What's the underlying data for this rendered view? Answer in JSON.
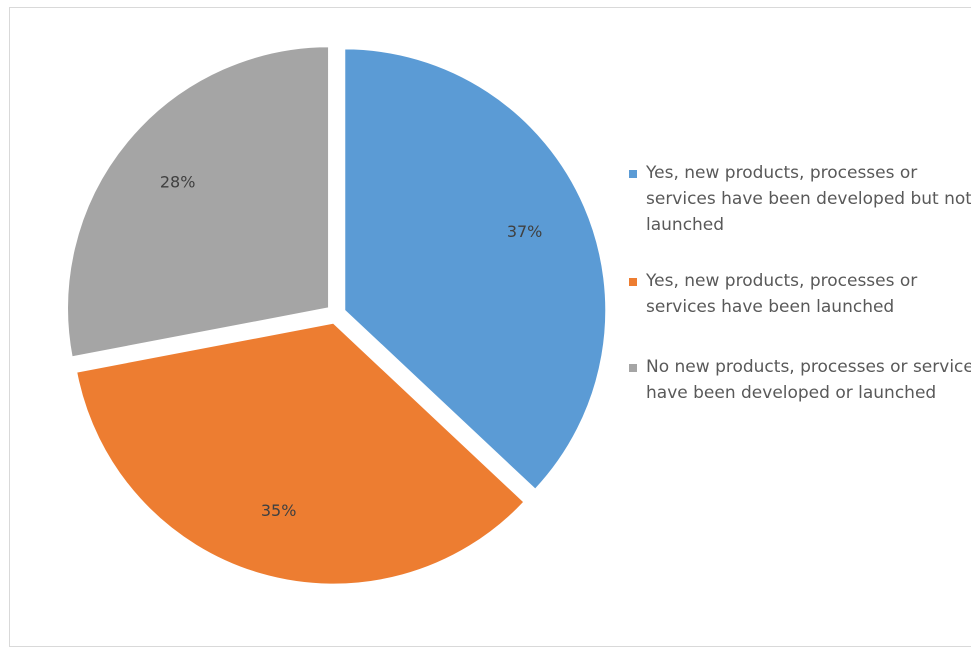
{
  "chart_data": {
    "type": "pie",
    "slices": [
      {
        "label": "Yes, new products, processes or services have been developed but not launched",
        "value": 37,
        "display": "37%",
        "color": "#5B9BD5"
      },
      {
        "label": "Yes, new products, processes or services have been launched",
        "value": 35,
        "display": "35%",
        "color": "#ED7D31"
      },
      {
        "label": "No new products, processes or services have been developed or launched",
        "value": 28,
        "display": "28%",
        "color": "#A5A5A5"
      }
    ],
    "legend_position": "right",
    "exploded": true
  }
}
